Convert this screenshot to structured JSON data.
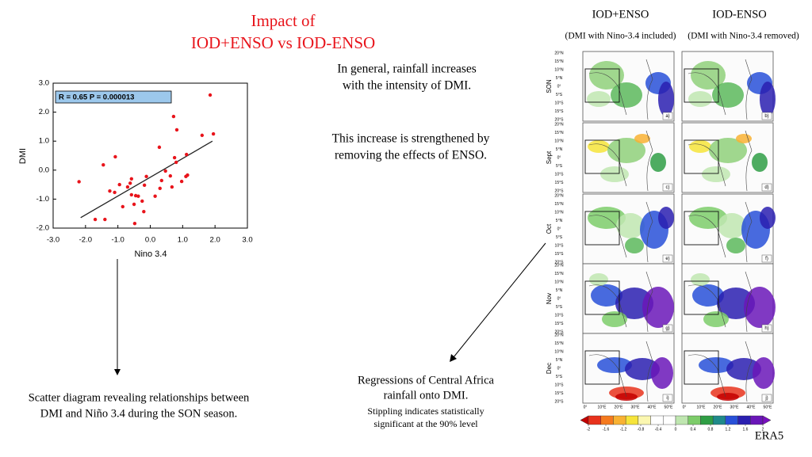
{
  "chart_data": {
    "type": "scatter",
    "xlabel": "Nino 3.4",
    "ylabel": "DMI",
    "annotation": "R = 0.65  P = 0.000013",
    "x": [
      -2.2,
      -1.7,
      -1.45,
      -1.4,
      -1.25,
      -1.1,
      -1.08,
      -0.95,
      -0.85,
      -0.7,
      -0.62,
      -0.58,
      -0.58,
      -0.5,
      -0.48,
      -0.45,
      -0.37,
      -0.25,
      -0.2,
      -0.18,
      -0.12,
      0.15,
      0.28,
      0.3,
      0.35,
      0.47,
      0.62,
      0.67,
      0.72,
      0.75,
      0.8,
      0.82,
      0.97,
      1.1,
      1.12,
      1.15,
      1.6,
      1.85,
      1.95
    ],
    "values": [
      -0.4,
      -1.7,
      0.18,
      -1.7,
      -0.72,
      -0.77,
      0.46,
      -0.5,
      -1.26,
      -0.58,
      -0.45,
      -0.3,
      -0.85,
      -1.18,
      -1.84,
      -0.88,
      -0.9,
      -1.07,
      -1.43,
      -0.52,
      -0.22,
      -0.9,
      0.79,
      -0.63,
      -0.36,
      -0.03,
      -0.2,
      -0.58,
      1.85,
      0.43,
      0.27,
      1.39,
      -0.39,
      -0.22,
      0.54,
      -0.17,
      1.2,
      2.59,
      1.25
    ],
    "color": "#e8141b",
    "trend_line": {
      "x": [
        -2.15,
        1.92
      ],
      "y": [
        -1.64,
        1.0
      ],
      "color": "#222222"
    },
    "xlim": [
      -3,
      3
    ],
    "xticks": [
      {
        "value": -3,
        "label": "-3.0"
      },
      {
        "value": -2,
        "label": "-2.0"
      },
      {
        "value": -1,
        "label": "-1.0"
      },
      {
        "value": 0,
        "label": "0.0"
      },
      {
        "value": 1,
        "label": "1.0"
      },
      {
        "value": 2,
        "label": "2.0"
      },
      {
        "value": 3,
        "label": "3.0"
      }
    ],
    "ylim": [
      -2,
      3
    ],
    "yticks": [
      {
        "value": -2,
        "label": "-2.0"
      },
      {
        "value": -1,
        "label": "-1.0"
      },
      {
        "value": 0,
        "label": "0.0"
      },
      {
        "value": 1,
        "label": "1.0"
      },
      {
        "value": 2,
        "label": "2.0"
      },
      {
        "value": 3,
        "label": "3.0"
      }
    ],
    "grid": false
  },
  "slide": {
    "title": [
      "Impact of",
      "IOD+ENSO vs IOD-ENSO"
    ],
    "note_top": [
      "In general, rainfall increases",
      "with the intensity of DMI."
    ],
    "note_mid": [
      "This increase is strengthened by",
      "removing the effects of ENSO."
    ],
    "note_bottom": [
      "Regressions of Central Africa",
      "rainfall onto DMI."
    ],
    "note_small": [
      "Stippling indicates statistically",
      "significant at the 90% level"
    ],
    "scatter_caption": [
      "Scatter diagram revealing relationships between",
      "DMI and  Niño 3.4 during the SON season."
    ],
    "source": "ERA5"
  },
  "maps": {
    "columns": [
      {
        "title": "IOD+ENSO",
        "subtitle": "(DMI with Nino-3.4 included)"
      },
      {
        "title": "IOD-ENSO",
        "subtitle": "(DMI with Nino-3.4 removed)"
      }
    ],
    "rows": [
      "SON",
      "Sept",
      "Oct",
      "Nov",
      "Dec"
    ],
    "panel_labels": [
      [
        "a)",
        "b)"
      ],
      [
        "c)",
        "d)"
      ],
      [
        "e)",
        "f)"
      ],
      [
        "g)",
        "h)"
      ],
      [
        "i)",
        "j)"
      ]
    ],
    "lat_labels": [
      "20°N",
      "15°N",
      "10°N",
      "5°N",
      "0°",
      "5°S",
      "10°S",
      "15°S",
      "20°S"
    ],
    "lon_labels": [
      "0°",
      "10°E",
      "20°E",
      "30°E",
      "40°E",
      "50°E"
    ],
    "colorbar": {
      "ticks": [
        -2,
        -1.6,
        -1.2,
        -0.8,
        -0.4,
        0,
        0.4,
        0.8,
        1.2,
        1.6,
        2
      ],
      "colors": [
        "#c40000",
        "#e8321c",
        "#f57a1e",
        "#f9b233",
        "#f6e43a",
        "#fbf7b0",
        "#ffffff",
        "#ffffff",
        "#bfe6b0",
        "#7dcc6a",
        "#2f9e45",
        "#1f8a8a",
        "#2850d8",
        "#2a1fb0",
        "#6a16b8",
        "#7a10c0"
      ]
    }
  }
}
